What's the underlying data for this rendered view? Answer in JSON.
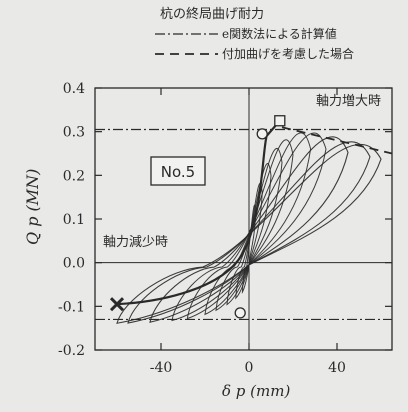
{
  "chart_data": {
    "type": "line",
    "legend_title": "杭の終局曲げ耐力",
    "legend": [
      {
        "label": "e関数法による計算値",
        "style": "dash-dot"
      },
      {
        "label": "付加曲げを考慮した場合",
        "style": "dashed"
      }
    ],
    "specimen_label": "No.5",
    "annotations": {
      "axial_increase": "軸力増大時",
      "axial_decrease": "軸力減少時"
    },
    "xlabel": "δ p (mm)",
    "ylabel": "Q p (MN)",
    "xlim": [
      -70,
      65
    ],
    "ylim": [
      -0.2,
      0.4
    ],
    "x_ticks": [
      -40,
      0,
      40
    ],
    "y_ticks": [
      -0.2,
      -0.1,
      0.0,
      0.1,
      0.2,
      0.3,
      0.4
    ],
    "y_tick_labels": [
      "-0.2",
      "-0.1",
      "0.0",
      "0.1",
      "0.2",
      "0.3",
      "0.4"
    ],
    "reference_lines": {
      "calc_positive": 0.305,
      "calc_negative": -0.13,
      "added_bending_start": [
        15,
        0.31
      ],
      "added_bending_end": [
        65,
        0.25
      ]
    },
    "markers": {
      "square_positive": [
        14,
        0.325
      ],
      "circle_positive": [
        6,
        0.295
      ],
      "circle_negative": [
        -4,
        -0.115
      ],
      "cross_negative": [
        -60,
        -0.095
      ]
    },
    "hysteresis_amplitudes": [
      3,
      6,
      10,
      15,
      20,
      28,
      35,
      45,
      55,
      60
    ]
  },
  "colors": {
    "background": "#e9e9e7",
    "ink": "#2a2a2a"
  }
}
